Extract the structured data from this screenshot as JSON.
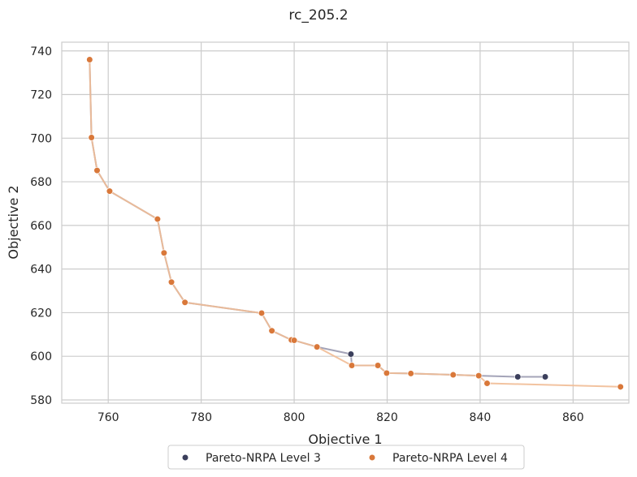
{
  "chart_data": {
    "type": "line",
    "title": "rc_205.2",
    "xlabel": "Objective 1",
    "ylabel": "Objective 2",
    "xlim": [
      750,
      872
    ],
    "ylim": [
      578.5,
      744
    ],
    "x_ticks": [
      760,
      780,
      800,
      820,
      840,
      860
    ],
    "y_ticks": [
      580,
      600,
      620,
      640,
      660,
      680,
      700,
      720,
      740
    ],
    "grid": true,
    "legend_position": "bottom-center",
    "series": [
      {
        "name": "Pareto-NRPA Level 3",
        "point_color": "#3b3f5c",
        "line_color": "#9a9ab0",
        "points": [
          [
            756.0,
            736.0
          ],
          [
            756.4,
            700.3
          ],
          [
            757.6,
            685.2
          ],
          [
            760.3,
            675.7
          ],
          [
            770.6,
            662.9
          ],
          [
            772.0,
            647.4
          ],
          [
            773.6,
            634.0
          ],
          [
            776.5,
            624.7
          ],
          [
            793.0,
            619.8
          ],
          [
            795.2,
            611.7
          ],
          [
            799.4,
            607.5
          ],
          [
            800.0,
            607.3
          ],
          [
            804.9,
            604.3
          ],
          [
            812.2,
            601.0
          ],
          [
            812.4,
            595.8
          ],
          [
            818.0,
            595.8
          ],
          [
            819.9,
            592.3
          ],
          [
            825.1,
            592.1
          ],
          [
            834.2,
            591.5
          ],
          [
            839.7,
            591.1
          ],
          [
            848.1,
            590.6
          ],
          [
            854.0,
            590.6
          ]
        ]
      },
      {
        "name": "Pareto-NRPA Level 4",
        "point_color": "#d9783a",
        "line_color": "#f1bc96",
        "points": [
          [
            756.0,
            736.0
          ],
          [
            756.4,
            700.3
          ],
          [
            757.6,
            685.2
          ],
          [
            760.3,
            675.7
          ],
          [
            770.6,
            662.9
          ],
          [
            772.0,
            647.4
          ],
          [
            773.6,
            634.0
          ],
          [
            776.5,
            624.7
          ],
          [
            793.0,
            619.8
          ],
          [
            795.2,
            611.7
          ],
          [
            799.4,
            607.5
          ],
          [
            800.0,
            607.3
          ],
          [
            804.9,
            604.3
          ],
          [
            812.4,
            595.8
          ],
          [
            818.0,
            595.8
          ],
          [
            819.9,
            592.3
          ],
          [
            825.1,
            592.1
          ],
          [
            834.2,
            591.5
          ],
          [
            839.7,
            591.1
          ],
          [
            841.5,
            587.6
          ],
          [
            870.2,
            586.0
          ]
        ]
      }
    ]
  }
}
